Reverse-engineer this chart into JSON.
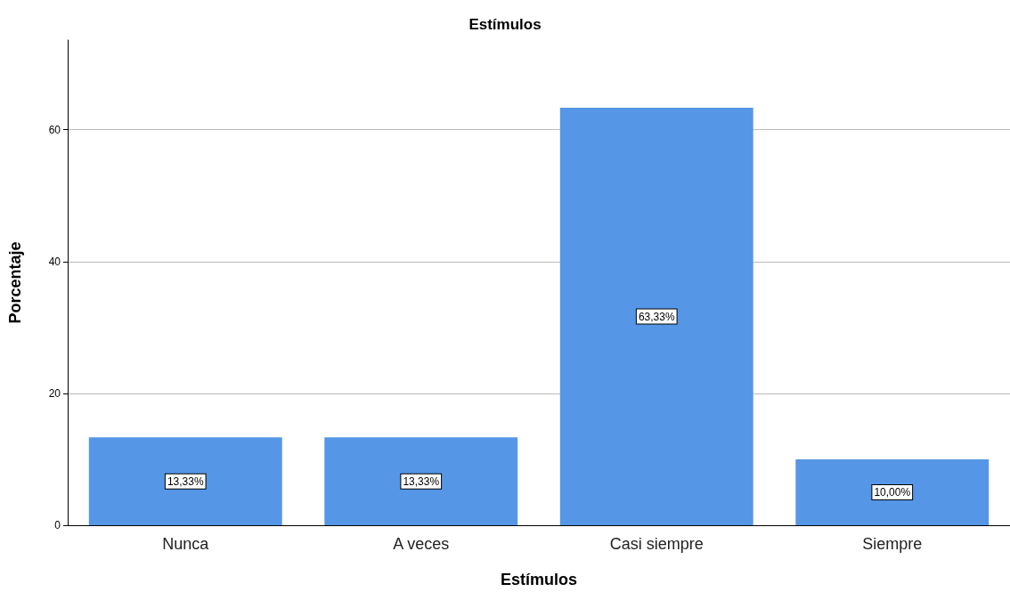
{
  "chart_data": {
    "type": "bar",
    "title": "Estímulos",
    "xlabel": "Estímulos",
    "ylabel": "Porcentaje",
    "categories": [
      "Nunca",
      "A veces",
      "Casi siempre",
      "Siempre"
    ],
    "values": [
      13.33,
      13.33,
      63.33,
      10.0
    ],
    "value_labels": [
      "13,33%",
      "13,33%",
      "63,33%",
      "10,00%"
    ],
    "color": "#5596e6",
    "ylim": [
      0,
      73.6
    ],
    "yticks": [
      0,
      20,
      40,
      60
    ],
    "grid": "y"
  }
}
